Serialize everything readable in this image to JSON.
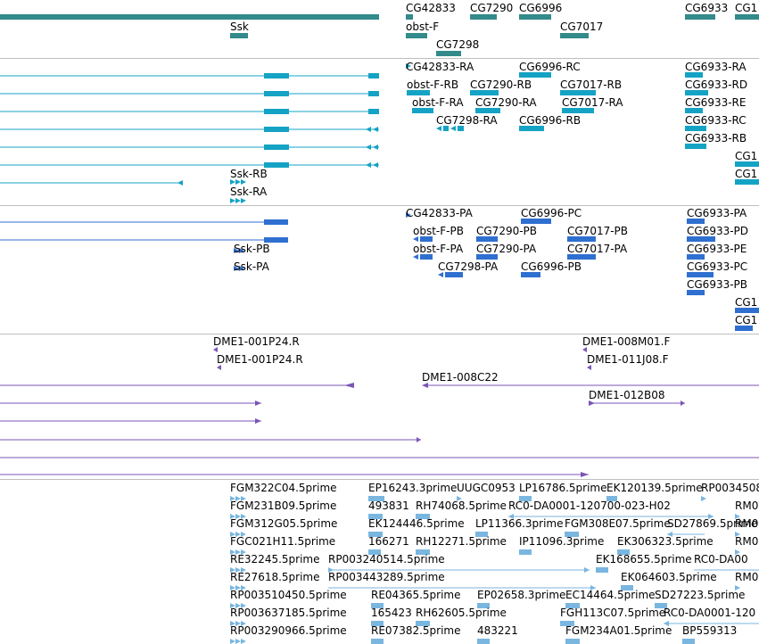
{
  "colors": {
    "track1": "#338a8a",
    "track2": "#14a3c4",
    "track3": "#2f6fd0",
    "track4": "#7a55b5",
    "track5": "#79b6e0",
    "separator": "#bfbfbf"
  },
  "track_genes": {
    "labels": [
      "CG42833",
      "CG7290",
      "CG6996",
      "CG6933",
      "CG1",
      "Ssk",
      "obst-F",
      "CG7017",
      "CG7298"
    ]
  },
  "track_transcripts": {
    "labels": [
      "CG42833-RA",
      "CG6996-RC",
      "CG6933-RA",
      "obst-F-RB",
      "CG7290-RB",
      "CG7017-RB",
      "CG6933-RD",
      "obst-F-RA",
      "CG7290-RA",
      "CG7017-RA",
      "CG6933-RE",
      "CG7298-RA",
      "CG6996-RB",
      "CG6933-RC",
      "CG6933-RB",
      "CG1",
      "Ssk-RB",
      "CG1",
      "Ssk-RA"
    ]
  },
  "track_proteins": {
    "labels": [
      "CG42833-PA",
      "CG6996-PC",
      "CG6933-PA",
      "obst-F-PB",
      "CG7290-PB",
      "CG7017-PB",
      "CG6933-PD",
      "Ssk-PB",
      "obst-F-PA",
      "CG7290-PA",
      "CG7017-PA",
      "CG6933-PE",
      "Ssk-PA",
      "CG7298-PA",
      "CG6996-PB",
      "CG6933-PC",
      "CG6933-PB",
      "CG1",
      "CG1"
    ]
  },
  "track_clones": {
    "labels": [
      "DME1-001P24.R",
      "DME1-008M01.F",
      "DME1-001P24.R",
      "DME1-011J08.F",
      "DME1-008C22",
      "DME1-012B08"
    ]
  },
  "track_ests": {
    "labels": [
      "FGM322C04.5prime",
      "EP16243.3prime",
      "UUGC0953",
      "LP16786.5prime",
      "EK120139.5prime",
      "RP0034508",
      "FGM231B09.5prime",
      "493831",
      "RH74068.5prime",
      "RC0-DA0001-120700-023-H02",
      "RM0",
      "FGM312G05.5prime",
      "EK124446.5prime",
      "LP11366.3prime",
      "FGM308E07.5prime",
      "SD27869.5prime",
      "RM0",
      "FGC021H11.5prime",
      "166271",
      "RH12271.5prime",
      "IP11096.3prime",
      "EK306323.5prime",
      "RM0",
      "RE32245.5prime",
      "RP003240514.5prime",
      "EK168655.5prime",
      "RC0-DA00",
      "RE27618.5prime",
      "RP003443289.5prime",
      "EK064603.5prime",
      "RM0",
      "RP003510450.5prime",
      "RE04365.5prime",
      "EP02658.3prime",
      "EC14464.5prime",
      "SD27223.5prime",
      "RP003637185.5prime",
      "165423",
      "RH62605.5prime",
      "FGH113C07.5prime",
      "RC0-DA0001-120",
      "RP003290966.5prime",
      "RE07382.5prime",
      "483221",
      "FGM234A01.5prime",
      "BP559313"
    ]
  }
}
